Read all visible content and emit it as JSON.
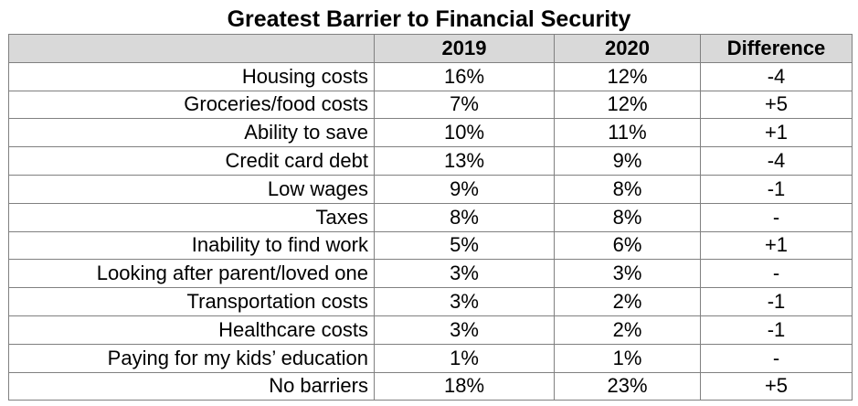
{
  "title": "Greatest Barrier to Financial Security",
  "columns": [
    "",
    "2019",
    "2020",
    "Difference"
  ],
  "rows": [
    {
      "label": "Housing costs",
      "y2019": "16%",
      "y2020": "12%",
      "diff": "-4"
    },
    {
      "label": "Groceries/food costs",
      "y2019": "7%",
      "y2020": "12%",
      "diff": "+5"
    },
    {
      "label": "Ability to save",
      "y2019": "10%",
      "y2020": "11%",
      "diff": "+1"
    },
    {
      "label": "Credit card debt",
      "y2019": "13%",
      "y2020": "9%",
      "diff": "-4"
    },
    {
      "label": "Low wages",
      "y2019": "9%",
      "y2020": "8%",
      "diff": "-1"
    },
    {
      "label": "Taxes",
      "y2019": "8%",
      "y2020": "8%",
      "diff": "-"
    },
    {
      "label": "Inability to find work",
      "y2019": "5%",
      "y2020": "6%",
      "diff": "+1"
    },
    {
      "label": "Looking after parent/loved one",
      "y2019": "3%",
      "y2020": "3%",
      "diff": "-"
    },
    {
      "label": "Transportation costs",
      "y2019": "3%",
      "y2020": "2%",
      "diff": "-1"
    },
    {
      "label": "Healthcare costs",
      "y2019": "3%",
      "y2020": "2%",
      "diff": "-1"
    },
    {
      "label": "Paying for my kids’ education",
      "y2019": "1%",
      "y2020": "1%",
      "diff": "-"
    },
    {
      "label": "No barriers",
      "y2019": "18%",
      "y2020": "23%",
      "diff": "+5"
    }
  ],
  "colors": {
    "header_background": "#d9d9d9",
    "border": "#808080",
    "text": "#000000"
  }
}
